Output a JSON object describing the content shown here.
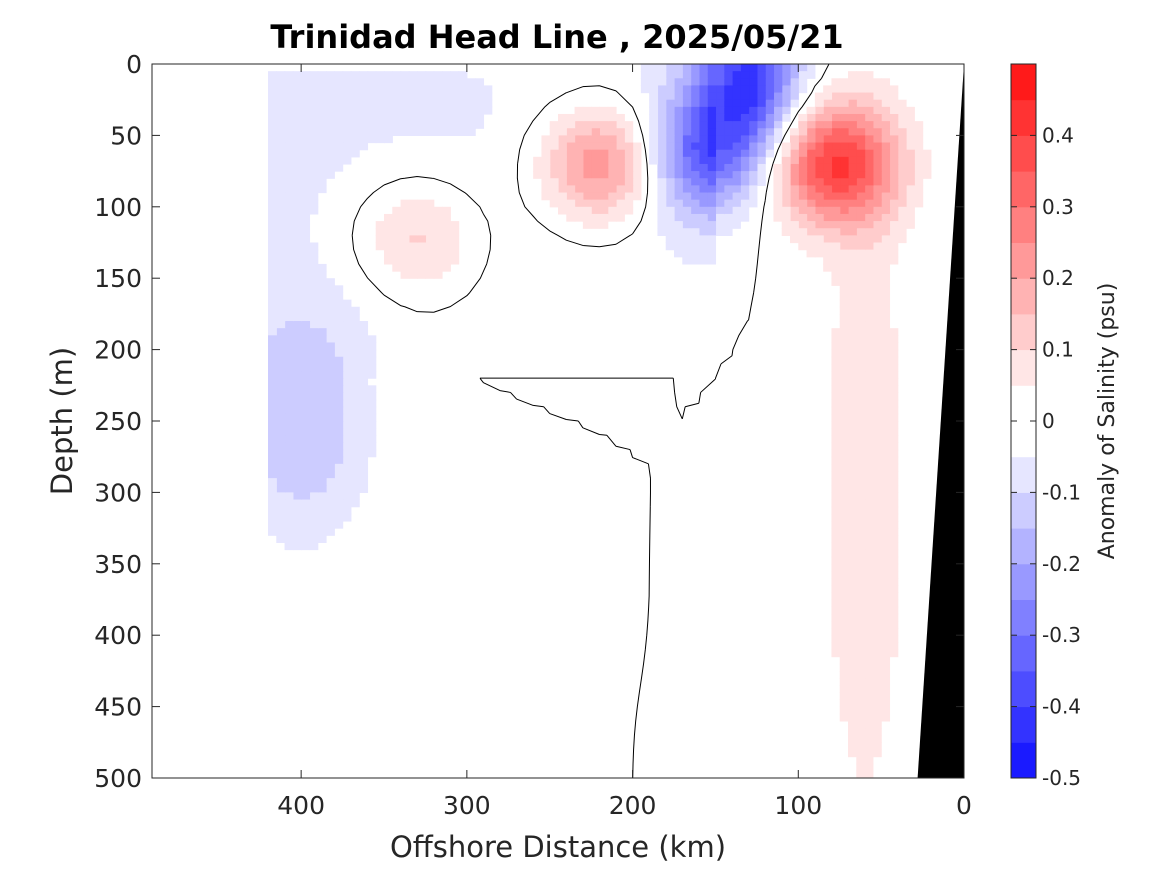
{
  "chart_data": {
    "type": "heatmap",
    "title": "Trinidad Head Line , 2025/05/21",
    "xlabel": "Offshore Distance (km)",
    "ylabel": "Depth (m)",
    "xlim": [
      490,
      0
    ],
    "ylim": [
      0,
      500
    ],
    "x_ticks": [
      "400",
      "300",
      "200",
      "100",
      "0"
    ],
    "y_ticks": [
      "0",
      "50",
      "100",
      "150",
      "200",
      "250",
      "300",
      "350",
      "400",
      "450",
      "500"
    ],
    "colorbar": {
      "label": "Anomaly of Salinity (psu)",
      "range": [
        -0.5,
        0.5
      ],
      "ticks": [
        "0.4",
        "0.3",
        "0.2",
        "0.1",
        "0",
        "-0.1",
        "-0.2",
        "-0.3",
        "-0.4",
        "-0.5"
      ],
      "levels": [
        -0.5,
        -0.45,
        -0.4,
        -0.35,
        -0.3,
        -0.25,
        -0.2,
        -0.15,
        -0.1,
        -0.05,
        0,
        0.05,
        0.1,
        0.15,
        0.2,
        0.25,
        0.3,
        0.35,
        0.4,
        0.45,
        0.5
      ],
      "colors": [
        "#0000ff",
        "#1a1aff",
        "#3333ff",
        "#4d4dff",
        "#6666ff",
        "#8080ff",
        "#9999ff",
        "#b3b3ff",
        "#ccccff",
        "#e6e6ff",
        "#ffffff",
        "#ffffff",
        "#ffe6e6",
        "#ffcccc",
        "#ffb3b3",
        "#ff9999",
        "#ff8080",
        "#ff6666",
        "#ff4d4d",
        "#ff3333",
        "#ff1a1a",
        "#ff0000"
      ]
    },
    "data_extent_x": [
      420,
      0
    ],
    "features": [
      {
        "kind": "positive_anomaly",
        "center_x": 218,
        "center_depth": 70,
        "peak": 0.3
      },
      {
        "kind": "positive_anomaly",
        "center_x": 80,
        "center_depth": 70,
        "peak": 0.4
      },
      {
        "kind": "positive_anomaly",
        "center_x": 330,
        "center_depth": 120,
        "peak": 0.15
      },
      {
        "kind": "negative_anomaly",
        "center_x": 130,
        "center_depth": 10,
        "peak": -0.4
      },
      {
        "kind": "negative_anomaly",
        "center_x": 155,
        "center_depth": 65,
        "peak": -0.3
      },
      {
        "kind": "positive_anomaly",
        "center_x": 60,
        "center_depth": 300,
        "peak": 0.1,
        "note": "nearshore tongue extending to ~450 m"
      },
      {
        "kind": "negative_anomaly",
        "center_x": 400,
        "center_depth": 250,
        "peak": -0.15
      }
    ],
    "bathymetry": {
      "color": "#000000",
      "surface_x_km": 0,
      "bottom_x_km": 28,
      "depth_range": [
        0,
        500
      ]
    }
  }
}
